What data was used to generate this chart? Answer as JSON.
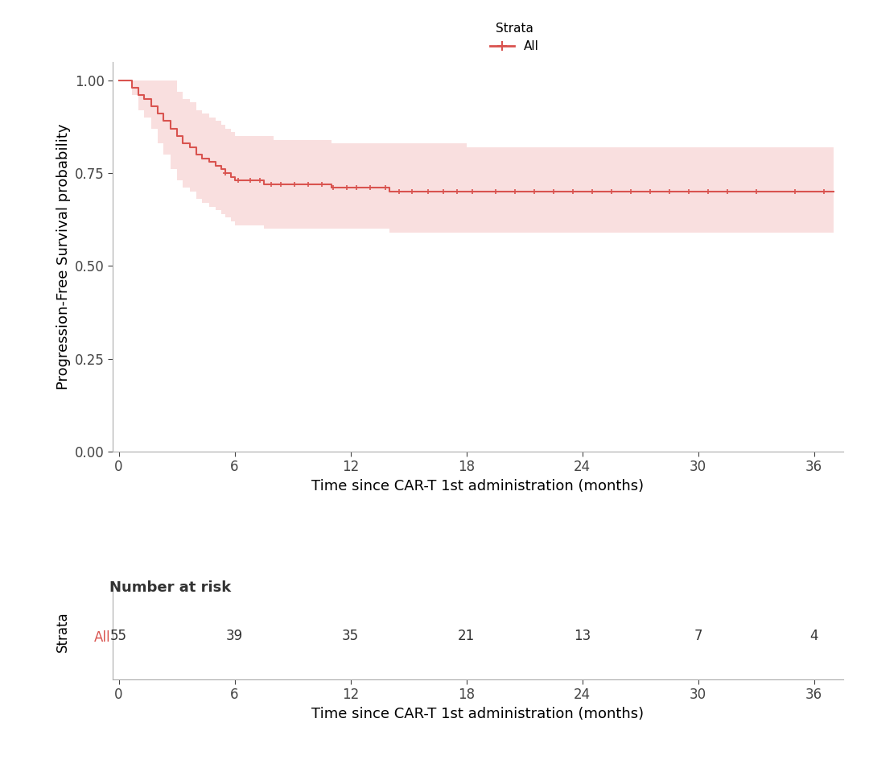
{
  "line_color": "#d9534f",
  "ci_color": "#f5c6c6",
  "ci_alpha": 0.55,
  "ylabel": "Progression-Free Survival probability",
  "xlabel": "Time since CAR-T 1st administration (months)",
  "ylim": [
    0.0,
    1.05
  ],
  "xlim": [
    -0.3,
    37.5
  ],
  "yticks": [
    0.0,
    0.25,
    0.5,
    0.75,
    1.0
  ],
  "xticks": [
    0,
    6,
    12,
    18,
    24,
    30,
    36
  ],
  "legend_label": "All",
  "legend_prefix": "Strata",
  "risk_numbers": [
    55,
    39,
    35,
    21,
    13,
    7,
    4
  ],
  "risk_times": [
    0,
    6,
    12,
    18,
    24,
    30,
    36
  ],
  "risk_label": "Number at risk",
  "strata_label": "Strata",
  "all_label": "All",
  "background_color": "#ffffff",
  "km_times": [
    0.0,
    0.3,
    0.7,
    1.0,
    1.3,
    1.7,
    2.0,
    2.3,
    2.7,
    3.0,
    3.3,
    3.7,
    4.0,
    4.3,
    4.7,
    5.0,
    5.3,
    5.5,
    5.8,
    6.0,
    6.5,
    7.0,
    7.5,
    8.0,
    8.5,
    9.0,
    9.5,
    10.0,
    10.5,
    11.0,
    11.5,
    12.0,
    12.5,
    13.0,
    14.0,
    15.0,
    16.0,
    17.0,
    18.0,
    19.0,
    20.0,
    21.0,
    22.0,
    23.0,
    24.0,
    25.0,
    26.0,
    27.0,
    28.0,
    29.0,
    30.0,
    31.0,
    32.0,
    33.0,
    34.0,
    35.0,
    36.0,
    37.0
  ],
  "km_surv": [
    1.0,
    1.0,
    0.98,
    0.96,
    0.95,
    0.93,
    0.91,
    0.89,
    0.87,
    0.85,
    0.83,
    0.82,
    0.8,
    0.79,
    0.78,
    0.77,
    0.76,
    0.75,
    0.74,
    0.73,
    0.73,
    0.73,
    0.72,
    0.72,
    0.72,
    0.72,
    0.72,
    0.72,
    0.72,
    0.71,
    0.71,
    0.71,
    0.71,
    0.71,
    0.7,
    0.7,
    0.7,
    0.7,
    0.7,
    0.7,
    0.7,
    0.7,
    0.7,
    0.7,
    0.7,
    0.7,
    0.7,
    0.7,
    0.7,
    0.7,
    0.7,
    0.7,
    0.7,
    0.7,
    0.7,
    0.7,
    0.7,
    0.7
  ],
  "km_upper": [
    1.0,
    1.0,
    1.0,
    1.0,
    1.0,
    1.0,
    1.0,
    1.0,
    1.0,
    0.97,
    0.95,
    0.94,
    0.92,
    0.91,
    0.9,
    0.89,
    0.88,
    0.87,
    0.86,
    0.85,
    0.85,
    0.85,
    0.85,
    0.84,
    0.84,
    0.84,
    0.84,
    0.84,
    0.84,
    0.83,
    0.83,
    0.83,
    0.83,
    0.83,
    0.83,
    0.83,
    0.83,
    0.83,
    0.82,
    0.82,
    0.82,
    0.82,
    0.82,
    0.82,
    0.82,
    0.82,
    0.82,
    0.82,
    0.82,
    0.82,
    0.82,
    0.82,
    0.82,
    0.82,
    0.82,
    0.82,
    0.82,
    0.82
  ],
  "km_lower": [
    1.0,
    1.0,
    0.96,
    0.92,
    0.9,
    0.87,
    0.83,
    0.8,
    0.76,
    0.73,
    0.71,
    0.7,
    0.68,
    0.67,
    0.66,
    0.65,
    0.64,
    0.63,
    0.62,
    0.61,
    0.61,
    0.61,
    0.6,
    0.6,
    0.6,
    0.6,
    0.6,
    0.6,
    0.6,
    0.6,
    0.6,
    0.6,
    0.6,
    0.6,
    0.59,
    0.59,
    0.59,
    0.59,
    0.59,
    0.59,
    0.59,
    0.59,
    0.59,
    0.59,
    0.59,
    0.59,
    0.59,
    0.59,
    0.59,
    0.59,
    0.59,
    0.59,
    0.59,
    0.59,
    0.59,
    0.59,
    0.59,
    0.59
  ],
  "censor_times": [
    5.5,
    6.2,
    6.8,
    7.3,
    7.9,
    8.4,
    9.1,
    9.8,
    10.5,
    11.1,
    11.8,
    12.3,
    13.0,
    13.8,
    14.5,
    15.2,
    16.0,
    16.8,
    17.5,
    18.3,
    19.5,
    20.5,
    21.5,
    22.5,
    23.5,
    24.5,
    25.5,
    26.5,
    27.5,
    28.5,
    29.5,
    30.5,
    31.5,
    33.0,
    35.0,
    36.5
  ],
  "censor_surv": [
    0.75,
    0.73,
    0.73,
    0.73,
    0.72,
    0.72,
    0.72,
    0.72,
    0.72,
    0.71,
    0.71,
    0.71,
    0.71,
    0.71,
    0.7,
    0.7,
    0.7,
    0.7,
    0.7,
    0.7,
    0.7,
    0.7,
    0.7,
    0.7,
    0.7,
    0.7,
    0.7,
    0.7,
    0.7,
    0.7,
    0.7,
    0.7,
    0.7,
    0.7,
    0.7,
    0.7
  ]
}
